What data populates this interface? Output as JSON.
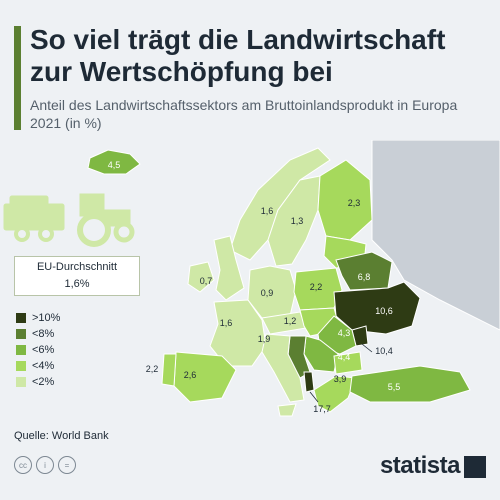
{
  "header": {
    "title": "So viel trägt die Landwirtschaft zur Wertschöpfung bei",
    "subtitle": "Anteil des Landwirtschaftssektors am Bruttoinlandsprodukt in Europa 2021 (in %)"
  },
  "eu_average": {
    "label": "EU-Durchschnitt",
    "value": "1,6%"
  },
  "legend": [
    {
      "label": ">10%",
      "color": "#2e3b14"
    },
    {
      "label": "<8%",
      "color": "#5b7f31"
    },
    {
      "label": "<6%",
      "color": "#7fb842"
    },
    {
      "label": "<4%",
      "color": "#a6d95c"
    },
    {
      "label": "<2%",
      "color": "#cfe8a6"
    }
  ],
  "map_values": {
    "iceland": "4,5",
    "norway": "1,6",
    "sweden": "1,3",
    "finland": "2,3",
    "ireland": "0,7",
    "denmark": "0,9",
    "poland": "2,2",
    "belarus": "6,8",
    "france": "1,6",
    "switzerland": "1,2",
    "ukraine": "10,6",
    "italy": "1,9",
    "romania": "4,3",
    "serbia": "4,4",
    "moldova": "10,4",
    "bulgaria": "3,9",
    "portugal": "2,2",
    "spain": "2,6",
    "turkey": "5,5",
    "albania": "17,7"
  },
  "footer": {
    "source": "Quelle: World Bank",
    "brand": "statista",
    "license_icons": [
      "cc-icon",
      "person-icon",
      "equals-icon"
    ]
  },
  "icons": {
    "illustration": "tractor-icon"
  }
}
